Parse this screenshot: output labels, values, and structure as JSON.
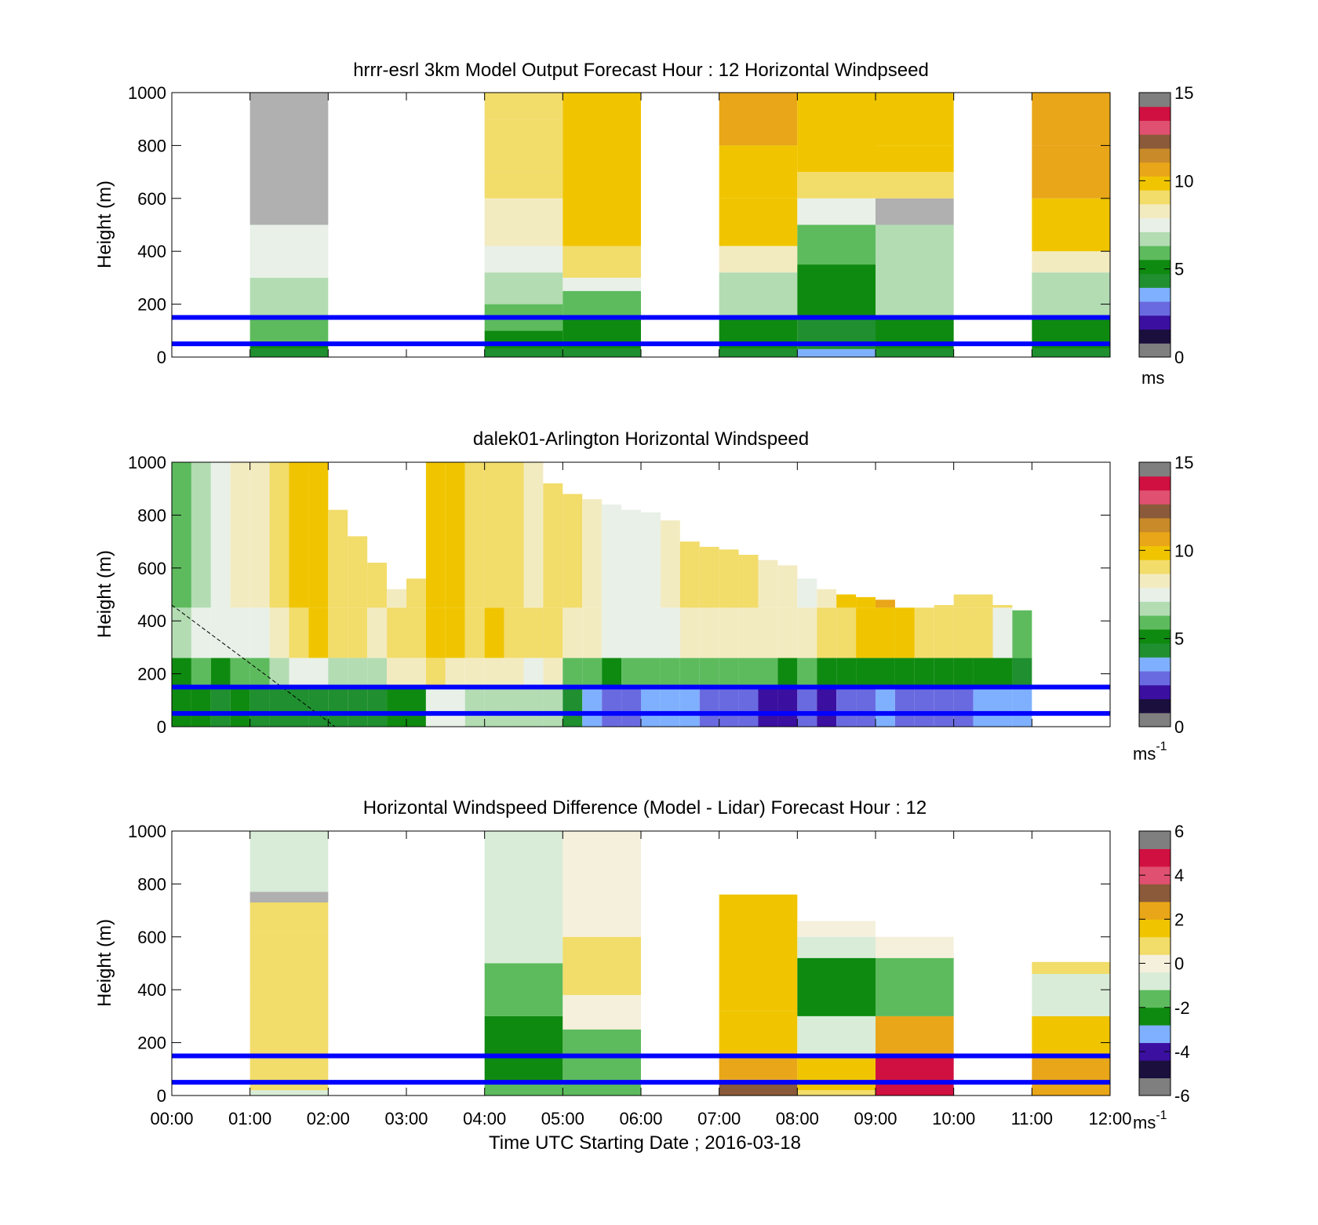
{
  "figure": {
    "xlabel": "Time UTC  Starting Date ; 2016-03-18",
    "x_ticks": [
      "00:00",
      "01:00",
      "02:00",
      "03:00",
      "04:00",
      "05:00",
      "06:00",
      "07:00",
      "08:00",
      "09:00",
      "10:00",
      "11:00",
      "12:00"
    ]
  },
  "colormaps": {
    "speed": [
      "#7f7f7f",
      "#1a0f3d",
      "#3b0fa0",
      "#6a6ae0",
      "#7fb0ff",
      "#1f8f2f",
      "#0f8a10",
      "#5dbb5d",
      "#b3dcb3",
      "#e8f0e8",
      "#f3ebc0",
      "#f2dc6a",
      "#f0c500",
      "#e9a619",
      "#c98a2a",
      "#8a5a3a",
      "#e05070",
      "#d01040",
      "#7f7f7f"
    ],
    "diff": [
      "#7f7f7f",
      "#1a0f3d",
      "#3b0fa0",
      "#7fb0ff",
      "#0f8a10",
      "#5dbb5d",
      "#d8ecd8",
      "#f5f0dc",
      "#f2dc6a",
      "#f0c500",
      "#e9a619",
      "#8a5a3a",
      "#e05070",
      "#d01040",
      "#7f7f7f"
    ]
  },
  "reference_lines_m": [
    50,
    150
  ],
  "reference_line_color": "#0000ff",
  "chart_data": [
    {
      "type": "heatmap",
      "title": "hrrr-esrl 3km Model Output   Forecast Hour : 12 Horizontal Windpseed",
      "ylabel": "Height (m)",
      "y_ticks": [
        "0",
        "200",
        "400",
        "600",
        "800",
        "1000"
      ],
      "ylim": [
        0,
        1000
      ],
      "xlim_hours": [
        0,
        12
      ],
      "colorbar": {
        "ticks": [
          "0",
          "5",
          "10",
          "15"
        ],
        "unit": "ms",
        "range": [
          0,
          15
        ]
      },
      "blocks": [
        {
          "t0": 1,
          "t1": 2,
          "segments": [
            [
              0,
              30,
              4.0
            ],
            [
              30,
              60,
              5.5
            ],
            [
              60,
              150,
              6.3
            ],
            [
              150,
              300,
              6.8
            ],
            [
              300,
              500,
              7.2
            ],
            [
              500,
              1000,
              "nan"
            ]
          ]
        },
        {
          "t0": 4,
          "t1": 5,
          "segments": [
            [
              0,
              30,
              4.0
            ],
            [
              30,
              100,
              5.2
            ],
            [
              100,
              200,
              6.3
            ],
            [
              200,
              320,
              7.0
            ],
            [
              320,
              420,
              7.8
            ],
            [
              420,
              600,
              8.6
            ],
            [
              600,
              700,
              9.2
            ],
            [
              700,
              900,
              9.0
            ],
            [
              900,
              1000,
              9.4
            ]
          ]
        },
        {
          "t0": 5,
          "t1": 6,
          "segments": [
            [
              0,
              30,
              4.2
            ],
            [
              30,
              150,
              4.8
            ],
            [
              150,
              250,
              5.8
            ],
            [
              250,
              300,
              7.2
            ],
            [
              300,
              420,
              9.3
            ],
            [
              420,
              1000,
              9.7
            ]
          ]
        },
        {
          "t0": 7,
          "t1": 8,
          "segments": [
            [
              0,
              30,
              4.0
            ],
            [
              30,
              150,
              5.3
            ],
            [
              150,
              320,
              6.5
            ],
            [
              320,
              420,
              8.5
            ],
            [
              420,
              600,
              9.7
            ],
            [
              600,
              800,
              10.2
            ],
            [
              800,
              1000,
              10.6
            ]
          ]
        },
        {
          "t0": 8,
          "t1": 9,
          "segments": [
            [
              0,
              30,
              3.2
            ],
            [
              30,
              150,
              4.3
            ],
            [
              150,
              350,
              5.0
            ],
            [
              350,
              500,
              6.2
            ],
            [
              500,
              600,
              7.6
            ],
            [
              600,
              700,
              9.0
            ],
            [
              700,
              1000,
              9.9
            ]
          ]
        },
        {
          "t0": 9,
          "t1": 10,
          "segments": [
            [
              0,
              30,
              4.2
            ],
            [
              30,
              150,
              5.5
            ],
            [
              150,
              500,
              6.4
            ],
            [
              500,
              600,
              "nan"
            ],
            [
              600,
              700,
              8.8
            ],
            [
              700,
              800,
              9.6
            ],
            [
              800,
              1000,
              9.9
            ]
          ]
        },
        {
          "t0": 11,
          "t1": 12,
          "segments": [
            [
              0,
              30,
              4.0
            ],
            [
              30,
              150,
              5.5
            ],
            [
              150,
              320,
              6.5
            ],
            [
              320,
              400,
              8.5
            ],
            [
              400,
              600,
              9.6
            ],
            [
              600,
              800,
              10.3
            ],
            [
              800,
              1000,
              11.0
            ]
          ]
        }
      ]
    },
    {
      "type": "heatmap",
      "title": "dalek01-Arlington  Horizontal Windspeed",
      "ylabel": "Height (m)",
      "y_ticks": [
        "0",
        "200",
        "400",
        "600",
        "800",
        "1000"
      ],
      "ylim": [
        0,
        1000
      ],
      "xlim_hours": [
        0,
        12
      ],
      "colorbar": {
        "ticks": [
          "0",
          "5",
          "10",
          "15"
        ],
        "unit": "ms-1",
        "range": [
          0,
          15
        ]
      },
      "columns_step_hours": 0.25,
      "columns": [
        [
          1000,
          6.0,
          5.0,
          5.5,
          7.0
        ],
        [
          1000,
          6.5,
          5.0,
          5.8,
          7.2
        ],
        [
          1000,
          7.2,
          4.6,
          5.2,
          7.5
        ],
        [
          1000,
          8.5,
          4.8,
          6.2,
          7.8
        ],
        [
          1000,
          8.3,
          4.6,
          6.0,
          7.5
        ],
        [
          1000,
          9.0,
          4.4,
          6.4,
          8.5
        ],
        [
          1000,
          9.6,
          4.6,
          7.2,
          9.0
        ],
        [
          1000,
          9.8,
          4.7,
          7.8,
          9.5
        ],
        [
          820,
          9.4,
          4.6,
          7.0,
          9.0
        ],
        [
          720,
          9.2,
          4.5,
          6.8,
          8.9
        ],
        [
          620,
          9.0,
          4.7,
          7.0,
          8.6
        ],
        [
          520,
          8.6,
          4.8,
          8.5,
          9.0
        ],
        [
          560,
          9.4,
          5.0,
          8.6,
          9.4
        ],
        [
          1000,
          10.0,
          7.5,
          8.8,
          10.2
        ],
        [
          1000,
          9.5,
          7.2,
          8.6,
          9.8
        ],
        [
          1000,
          9.2,
          6.5,
          8.2,
          9.4
        ],
        [
          1000,
          9.0,
          6.8,
          8.4,
          9.6
        ],
        [
          1000,
          9.1,
          6.6,
          8.2,
          9.4
        ],
        [
          1000,
          8.6,
          6.4,
          7.8,
          9.0
        ],
        [
          920,
          8.8,
          6.6,
          8.0,
          9.2
        ],
        [
          880,
          9.0,
          4.5,
          6.2,
          8.4
        ],
        [
          860,
          8.6,
          3.4,
          5.8,
          8.0
        ],
        [
          840,
          7.6,
          2.8,
          5.4,
          7.4
        ],
        [
          820,
          7.8,
          2.8,
          5.6,
          7.4
        ],
        [
          810,
          7.6,
          3.2,
          5.6,
          7.6
        ],
        [
          780,
          8.5,
          3.4,
          5.8,
          7.8
        ],
        [
          700,
          8.8,
          3.5,
          6.0,
          8.2
        ],
        [
          680,
          9.2,
          2.8,
          5.8,
          8.4
        ],
        [
          670,
          9.0,
          3.0,
          6.0,
          8.4
        ],
        [
          650,
          9.0,
          2.6,
          5.8,
          8.6
        ],
        [
          630,
          8.4,
          2.2,
          5.6,
          8.4
        ],
        [
          610,
          8.0,
          2.0,
          5.4,
          8.2
        ],
        [
          560,
          7.6,
          2.4,
          5.6,
          8.6
        ],
        [
          520,
          8.4,
          2.2,
          5.4,
          9.0
        ],
        [
          500,
          9.6,
          2.8,
          5.2,
          9.4
        ],
        [
          490,
          9.8,
          3.0,
          5.4,
          9.6
        ],
        [
          480,
          10.4,
          3.2,
          5.4,
          9.8
        ],
        [
          450,
          10.2,
          3.0,
          5.2,
          9.6
        ],
        [
          450,
          9.6,
          2.8,
          5.0,
          9.4
        ],
        [
          460,
          9.4,
          3.0,
          5.0,
          9.0
        ],
        [
          500,
          9.2,
          3.1,
          5.2,
          9.0
        ],
        [
          500,
          9.4,
          3.2,
          5.3,
          9.2
        ],
        [
          460,
          9.0,
          3.5,
          5.5,
          7.5
        ],
        [
          440,
          5.5,
          3.4,
          4.6,
          5.8
        ]
      ]
    },
    {
      "type": "heatmap",
      "title": "Horizontal Windspeed Difference (Model - Lidar) Forecast Hour : 12",
      "ylabel": "Height (m)",
      "y_ticks": [
        "0",
        "200",
        "400",
        "600",
        "800",
        "1000"
      ],
      "ylim": [
        0,
        1000
      ],
      "xlim_hours": [
        0,
        12
      ],
      "colorbar": {
        "ticks": [
          "-6",
          "-4",
          "-2",
          "0",
          "2",
          "4",
          "6"
        ],
        "unit": "ms-1",
        "range": [
          -6,
          6
        ]
      },
      "blocks": [
        {
          "t0": 1,
          "t1": 2,
          "segments": [
            [
              0,
              20,
              -0.8
            ],
            [
              20,
              80,
              0.4
            ],
            [
              80,
              420,
              0.9
            ],
            [
              420,
              620,
              0.8
            ],
            [
              620,
              730,
              0.5
            ],
            [
              730,
              770,
              "nan"
            ],
            [
              770,
              1000,
              -0.7
            ]
          ]
        },
        {
          "t0": 4,
          "t1": 5,
          "segments": [
            [
              0,
              50,
              -1.4
            ],
            [
              50,
              300,
              -2.6
            ],
            [
              300,
              500,
              -1.5
            ],
            [
              500,
              1000,
              -0.6
            ]
          ]
        },
        {
          "t0": 5,
          "t1": 6,
          "segments": [
            [
              0,
              150,
              -1.8
            ],
            [
              150,
              250,
              -1.2
            ],
            [
              250,
              380,
              -0.2
            ],
            [
              380,
              600,
              0.7
            ],
            [
              600,
              1000,
              0.3
            ]
          ]
        },
        {
          "t0": 7,
          "t1": 8,
          "segments": [
            [
              0,
              60,
              3.2
            ],
            [
              60,
              150,
              2.6
            ],
            [
              150,
              320,
              1.3
            ],
            [
              320,
              760,
              1.7
            ]
          ]
        },
        {
          "t0": 8,
          "t1": 9,
          "segments": [
            [
              0,
              20,
              0.6
            ],
            [
              20,
              150,
              1.7
            ],
            [
              150,
              300,
              -0.6
            ],
            [
              300,
              520,
              -2.2
            ],
            [
              520,
              600,
              -0.8
            ],
            [
              600,
              660,
              0.3
            ]
          ]
        },
        {
          "t0": 9,
          "t1": 10,
          "segments": [
            [
              0,
              150,
              4.6
            ],
            [
              150,
              300,
              2.6
            ],
            [
              300,
              520,
              -1.6
            ],
            [
              520,
              600,
              0.3
            ]
          ]
        },
        {
          "t0": 11,
          "t1": 12,
          "segments": [
            [
              0,
              150,
              2.2
            ],
            [
              150,
              300,
              1.3
            ],
            [
              300,
              460,
              -0.8
            ],
            [
              460,
              505,
              0.4
            ]
          ]
        }
      ]
    }
  ]
}
